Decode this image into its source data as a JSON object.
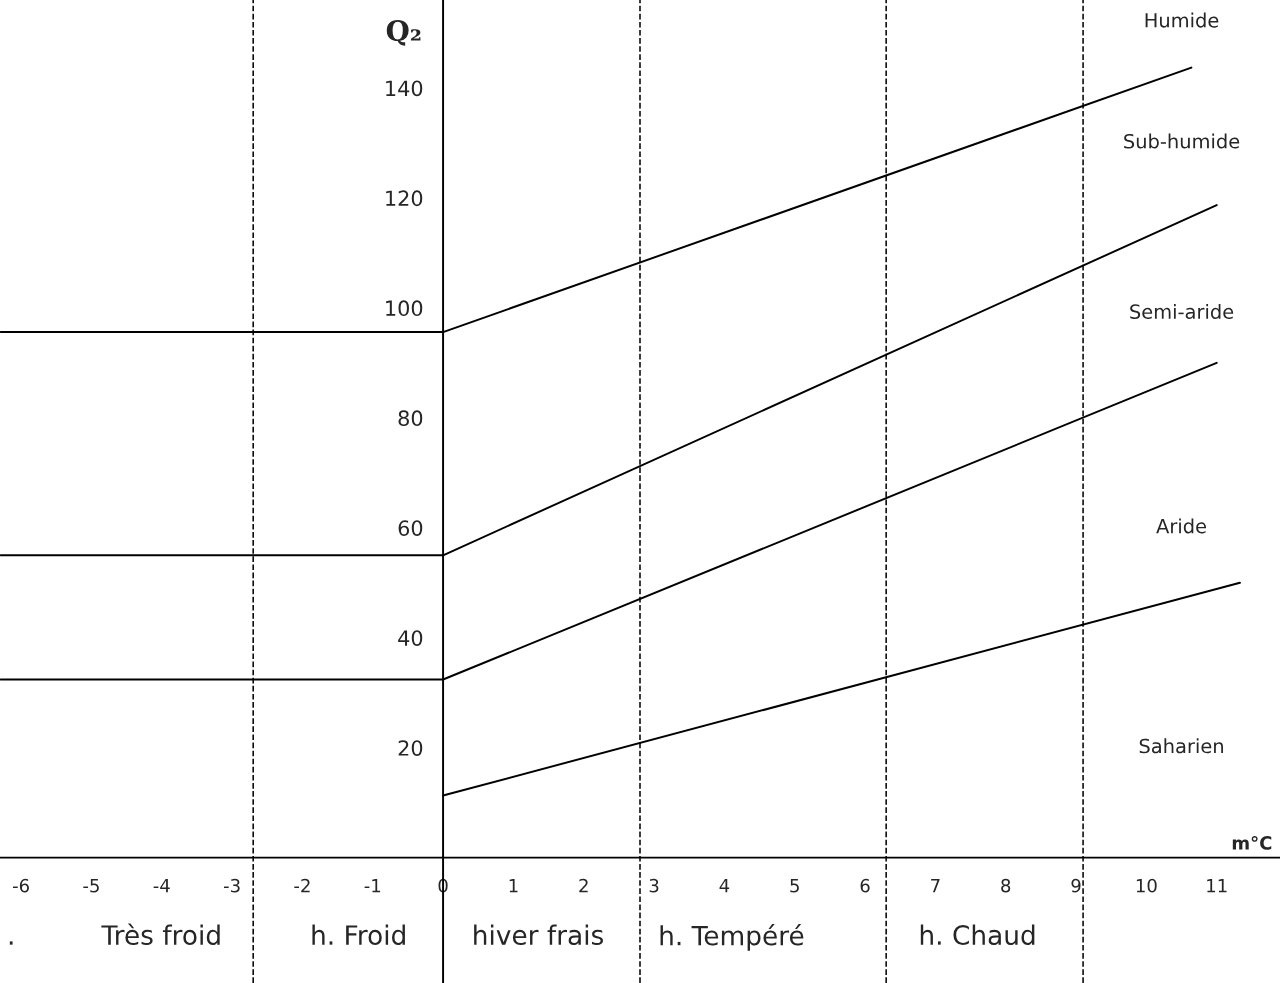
{
  "chart_data": {
    "type": "line",
    "xlabel": "m°C",
    "ylabel": "Q₂",
    "xlim": [
      -6.3,
      11.9
    ],
    "ylim": [
      -22.8,
      156
    ],
    "xticks": [
      -6,
      -5,
      -4,
      -3,
      -2,
      -1,
      0,
      1,
      2,
      3,
      4,
      5,
      6,
      7,
      8,
      9,
      10,
      11
    ],
    "yticks": [
      20,
      40,
      60,
      80,
      100,
      120,
      140
    ],
    "series": [
      {
        "color": "#000000",
        "x": [
          -6.29,
          0,
          10.64
        ],
        "values": [
          95.6,
          95.6,
          143.7
        ]
      },
      {
        "color": "#000000",
        "x": [
          -6.29,
          0,
          11.0
        ],
        "values": [
          55,
          55,
          118.7
        ]
      },
      {
        "color": "#000000",
        "x": [
          -6.29,
          0,
          11.0
        ],
        "values": [
          32.4,
          32.4,
          90
        ]
      },
      {
        "color": "#000000",
        "x": [
          0,
          11.33
        ],
        "values": [
          11.3,
          50
        ]
      }
    ],
    "ref_lines": [
      {
        "axis": "x",
        "value": -2.7,
        "color": "#000000",
        "line_style": "dashed"
      },
      {
        "axis": "x",
        "value": 2.8,
        "color": "#000000",
        "line_style": "dashed"
      },
      {
        "axis": "x",
        "value": 6.3,
        "color": "#000000",
        "line_style": "dashed"
      },
      {
        "axis": "x",
        "value": 9.1,
        "color": "#000000",
        "line_style": "dashed"
      }
    ],
    "annotations": [
      "Humide",
      "Sub-humide",
      "Semi-aride",
      "Aride",
      "Saharien",
      ".",
      "Très froid",
      "h. Froid",
      "hiver frais",
      "h. Tempéré",
      "h. Chaud"
    ],
    "marker": "none",
    "line_style": "solid",
    "grid": false,
    "legend": false
  }
}
